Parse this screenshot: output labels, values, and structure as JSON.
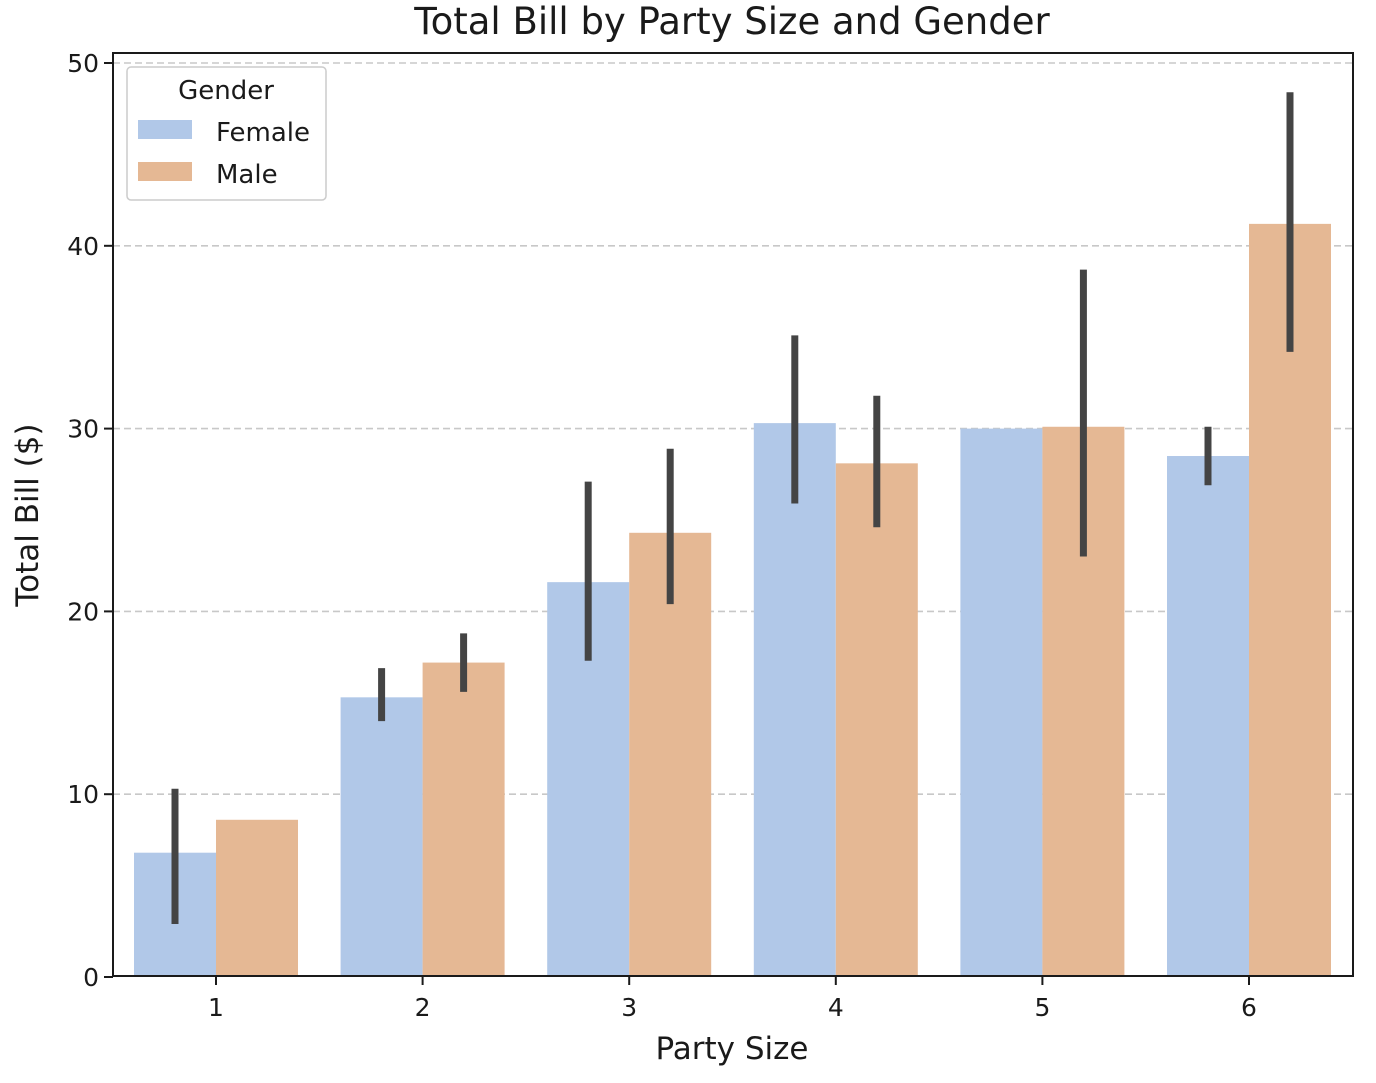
{
  "chart_data": {
    "type": "bar",
    "title": "Total Bill by Party Size and Gender",
    "xlabel": "Party Size",
    "ylabel": "Total Bill ($)",
    "categories": [
      "1",
      "2",
      "3",
      "4",
      "5",
      "6"
    ],
    "ylim": [
      0,
      50
    ],
    "yticks": [
      0,
      10,
      20,
      30,
      40,
      50
    ],
    "ytick_labels": [
      "0",
      "10",
      "20",
      "30",
      "40",
      "50"
    ],
    "grid": "y-dashed",
    "legend": {
      "title": "Gender",
      "placement": "top-left"
    },
    "series": [
      {
        "name": "Female",
        "color": "#b1c8e8",
        "values": [
          6.8,
          15.3,
          21.6,
          30.3,
          30.0,
          28.5
        ],
        "ci": [
          [
            2.9,
            10.3
          ],
          [
            14.0,
            16.9
          ],
          [
            17.3,
            27.1
          ],
          [
            25.9,
            35.1
          ],
          null,
          [
            26.9,
            30.1
          ]
        ]
      },
      {
        "name": "Male",
        "color": "#e5b894",
        "values": [
          8.6,
          17.2,
          24.3,
          28.1,
          30.1,
          41.2
        ],
        "ci": [
          null,
          [
            15.6,
            18.8
          ],
          [
            20.4,
            28.9
          ],
          [
            24.6,
            31.8
          ],
          [
            23.0,
            38.7
          ],
          [
            34.2,
            48.4
          ]
        ]
      }
    ],
    "errorbar_color": "#444444",
    "grid_color": "#c8c8c8"
  }
}
